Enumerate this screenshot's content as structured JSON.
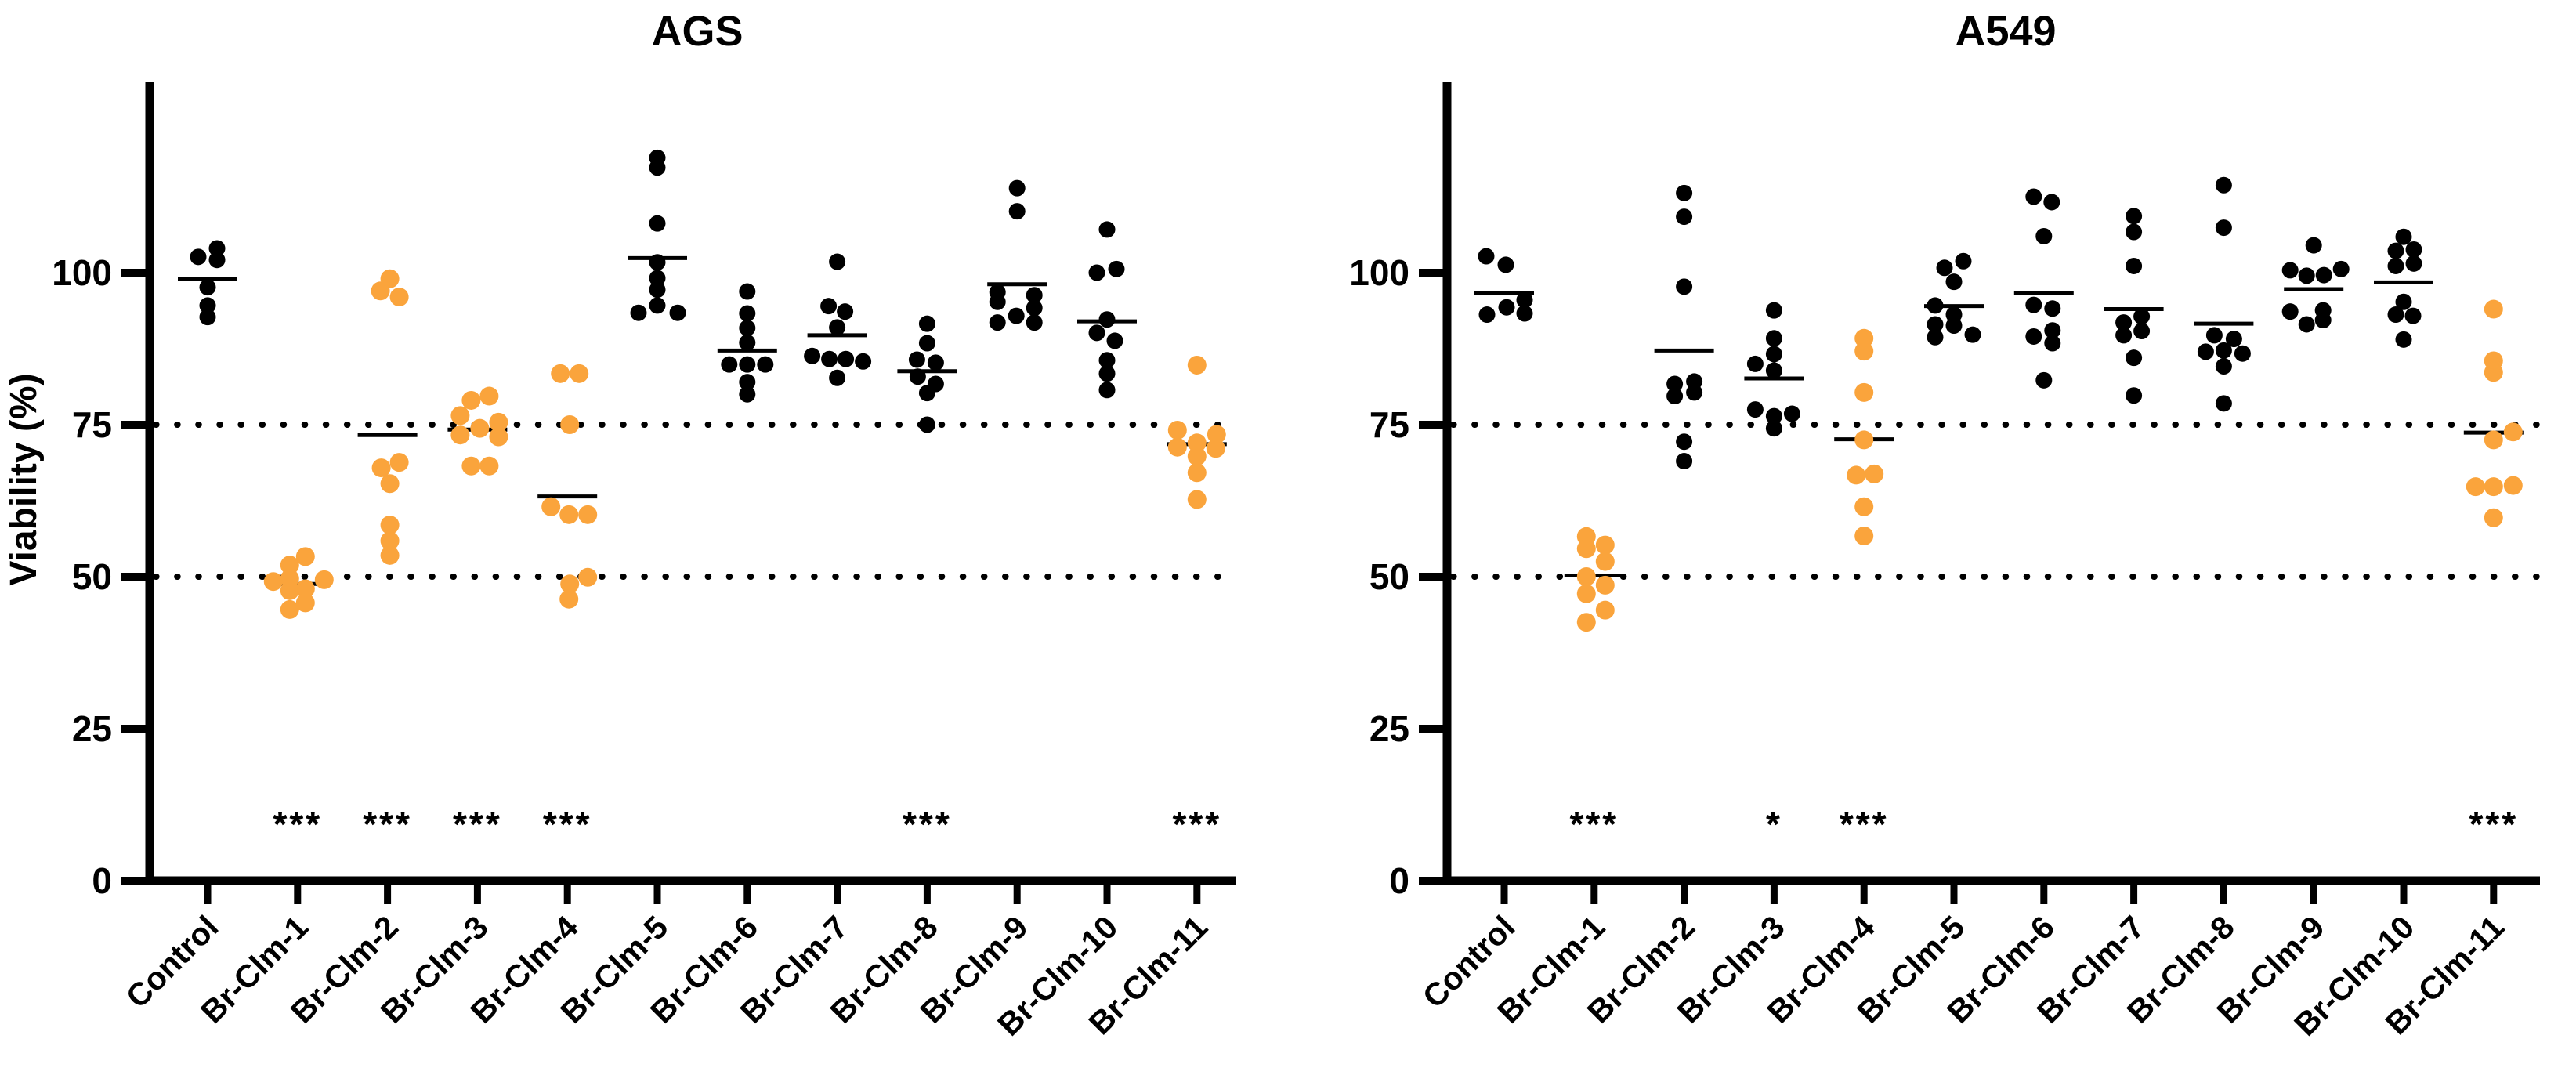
{
  "page": {
    "background": "#FFFFFF"
  },
  "chart_data": [
    {
      "type": "scatter",
      "title": "AGS",
      "ylabel": "Viability (%)",
      "ylim": [
        0,
        122
      ],
      "yticks": [
        {
          "value": 0,
          "label": "0"
        },
        {
          "value": 25,
          "label": "25"
        },
        {
          "value": 50,
          "label": "50"
        },
        {
          "value": 75,
          "label": "75"
        },
        {
          "value": 100,
          "label": "100"
        }
      ],
      "reference_lines": [
        {
          "value": 75,
          "style": "dotted"
        },
        {
          "value": 50,
          "style": "dotted"
        }
      ],
      "colors": {
        "default": "#000000",
        "highlight": "#FAA43C"
      },
      "legend": "none",
      "grid": "off",
      "groups": [
        {
          "label": "Control",
          "color": "default",
          "mean": 98.9,
          "significance": "",
          "points": [
            [
              12,
              104.0
            ],
            [
              -12,
              102.6
            ],
            [
              12,
              102.1
            ],
            [
              0,
              97.6
            ],
            [
              0,
              94.6
            ],
            [
              0,
              92.7
            ]
          ]
        },
        {
          "label": "Br-Clm-1",
          "color": "highlight",
          "mean": 48.8,
          "significance": "***",
          "points": [
            [
              10,
              53.3
            ],
            [
              -10,
              51.9
            ],
            [
              -10,
              49.7
            ],
            [
              34,
              49.5
            ],
            [
              -31,
              49.2
            ],
            [
              10,
              48.0
            ],
            [
              -10,
              47.7
            ],
            [
              10,
              45.7
            ],
            [
              -10,
              44.6
            ]
          ]
        },
        {
          "label": "Br-Clm-2",
          "color": "highlight",
          "mean": 73.3,
          "significance": "***",
          "points": [
            [
              3,
              99.0
            ],
            [
              -9,
              97.0
            ],
            [
              15,
              96.0
            ],
            [
              15,
              68.8
            ],
            [
              -8,
              67.9
            ],
            [
              3,
              65.3
            ],
            [
              3,
              58.5
            ],
            [
              3,
              55.9
            ],
            [
              3,
              53.5
            ]
          ]
        },
        {
          "label": "Br-Clm-3",
          "color": "highlight",
          "mean": 74.2,
          "significance": "***",
          "points": [
            [
              15,
              79.7
            ],
            [
              -8,
              79.0
            ],
            [
              -22,
              76.5
            ],
            [
              27,
              75.4
            ],
            [
              3,
              74.4
            ],
            [
              -22,
              73.3
            ],
            [
              27,
              73.0
            ],
            [
              -8,
              68.2
            ],
            [
              15,
              68.2
            ]
          ]
        },
        {
          "label": "Br-Clm-4",
          "color": "highlight",
          "mean": 63.2,
          "significance": "***",
          "points": [
            [
              -9,
              83.4
            ],
            [
              15,
              83.4
            ],
            [
              3,
              75.0
            ],
            [
              -21,
              61.5
            ],
            [
              2,
              60.2
            ],
            [
              26,
              60.2
            ],
            [
              26,
              49.9
            ],
            [
              3,
              48.8
            ],
            [
              2,
              46.3
            ]
          ]
        },
        {
          "label": "Br-Clm-5",
          "color": "default",
          "mean": 102.4,
          "significance": "",
          "points": [
            [
              0,
              118.9
            ],
            [
              0,
              117.3
            ],
            [
              0,
              108.1
            ],
            [
              0,
              101.7
            ],
            [
              0,
              99.1
            ],
            [
              0,
              97.2
            ],
            [
              0,
              94.6
            ],
            [
              -24,
              93.4
            ],
            [
              26,
              93.4
            ]
          ]
        },
        {
          "label": "Br-Clm-6",
          "color": "default",
          "mean": 87.2,
          "significance": "",
          "points": [
            [
              0,
              96.9
            ],
            [
              0,
              93.3
            ],
            [
              0,
              90.9
            ],
            [
              0,
              88.5
            ],
            [
              -23,
              84.9
            ],
            [
              0,
              84.9
            ],
            [
              23,
              84.9
            ],
            [
              0,
              82.0
            ],
            [
              0,
              80.0
            ]
          ]
        },
        {
          "label": "Br-Clm-7",
          "color": "default",
          "mean": 89.7,
          "significance": "",
          "points": [
            [
              0,
              101.8
            ],
            [
              -11,
              94.5
            ],
            [
              10,
              93.6
            ],
            [
              0,
              91.0
            ],
            [
              -32,
              86.3
            ],
            [
              -10,
              85.8
            ],
            [
              11,
              85.8
            ],
            [
              33,
              85.4
            ],
            [
              0,
              82.7
            ]
          ]
        },
        {
          "label": "Br-Clm-8",
          "color": "default",
          "mean": 83.8,
          "significance": "***",
          "points": [
            [
              0,
              91.6
            ],
            [
              0,
              88.4
            ],
            [
              -13,
              85.7
            ],
            [
              11,
              85.2
            ],
            [
              -12,
              82.9
            ],
            [
              11,
              81.7
            ],
            [
              0,
              80.2
            ],
            [
              0,
              75.0
            ]
          ]
        },
        {
          "label": "Br-Clm-9",
          "color": "default",
          "mean": 98.1,
          "significance": "",
          "points": [
            [
              0,
              113.9
            ],
            [
              0,
              110.1
            ],
            [
              -25,
              96.8
            ],
            [
              22,
              96.3
            ],
            [
              -25,
              95.2
            ],
            [
              22,
              94.2
            ],
            [
              -1,
              92.9
            ],
            [
              -25,
              91.8
            ],
            [
              22,
              91.8
            ]
          ]
        },
        {
          "label": "Br-Clm-10",
          "color": "default",
          "mean": 92.0,
          "significance": "",
          "points": [
            [
              0,
              107.1
            ],
            [
              12,
              100.6
            ],
            [
              -13,
              100.0
            ],
            [
              0,
              92.3
            ],
            [
              -13,
              90.1
            ],
            [
              10,
              88.8
            ],
            [
              0,
              85.6
            ],
            [
              0,
              83.4
            ],
            [
              0,
              80.7
            ]
          ]
        },
        {
          "label": "Br-Clm-11",
          "color": "highlight",
          "mean": 71.8,
          "significance": "***",
          "points": [
            [
              0,
              84.8
            ],
            [
              -25,
              74.1
            ],
            [
              25,
              73.4
            ],
            [
              0,
              72.0
            ],
            [
              -25,
              71.3
            ],
            [
              24,
              71.1
            ],
            [
              0,
              69.8
            ],
            [
              0,
              67.1
            ],
            [
              0,
              62.7
            ]
          ]
        }
      ]
    },
    {
      "type": "scatter",
      "title": "A549",
      "ylabel": "",
      "ylim": [
        0,
        122
      ],
      "yticks": [
        {
          "value": 0,
          "label": "0"
        },
        {
          "value": 25,
          "label": "25"
        },
        {
          "value": 50,
          "label": "50"
        },
        {
          "value": 75,
          "label": "75"
        },
        {
          "value": 100,
          "label": "100"
        }
      ],
      "reference_lines": [
        {
          "value": 75,
          "style": "dotted"
        },
        {
          "value": 50,
          "style": "dotted"
        }
      ],
      "colors": {
        "default": "#000000",
        "highlight": "#FAA43C"
      },
      "legend": "none",
      "grid": "off",
      "groups": [
        {
          "label": "Control",
          "color": "default",
          "mean": 96.7,
          "significance": "",
          "points": [
            [
              -23,
              102.7
            ],
            [
              2,
              101.3
            ],
            [
              26,
              95.5
            ],
            [
              3,
              94.3
            ],
            [
              26,
              93.3
            ],
            [
              -22,
              93.1
            ]
          ]
        },
        {
          "label": "Br-Clm-1",
          "color": "highlight",
          "mean": 50.2,
          "significance": "***",
          "points": [
            [
              -10,
              56.6
            ],
            [
              14,
              55.2
            ],
            [
              -10,
              54.6
            ],
            [
              14,
              52.5
            ],
            [
              -10,
              50.0
            ],
            [
              14,
              48.6
            ],
            [
              -10,
              47.2
            ],
            [
              14,
              44.5
            ],
            [
              -10,
              42.5
            ]
          ]
        },
        {
          "label": "Br-Clm-2",
          "color": "default",
          "mean": 87.2,
          "significance": "",
          "points": [
            [
              0,
              113.1
            ],
            [
              0,
              109.2
            ],
            [
              0,
              97.7
            ],
            [
              13,
              82.1
            ],
            [
              -12,
              81.7
            ],
            [
              13,
              80.3
            ],
            [
              -12,
              79.7
            ],
            [
              0,
              72.2
            ],
            [
              0,
              69.0
            ]
          ]
        },
        {
          "label": "Br-Clm-3",
          "color": "default",
          "mean": 82.6,
          "significance": "*",
          "points": [
            [
              0,
              93.8
            ],
            [
              0,
              89.2
            ],
            [
              0,
              86.6
            ],
            [
              -24,
              85.0
            ],
            [
              0,
              83.9
            ],
            [
              -24,
              77.5
            ],
            [
              23,
              76.8
            ],
            [
              0,
              76.4
            ],
            [
              0,
              74.4
            ]
          ]
        },
        {
          "label": "Br-Clm-4",
          "color": "highlight",
          "mean": 72.6,
          "significance": "***",
          "points": [
            [
              0,
              89.2
            ],
            [
              0,
              87.1
            ],
            [
              0,
              80.3
            ],
            [
              0,
              72.5
            ],
            [
              13,
              66.9
            ],
            [
              -10,
              66.7
            ],
            [
              0,
              61.5
            ],
            [
              0,
              56.7
            ]
          ]
        },
        {
          "label": "Br-Clm-5",
          "color": "default",
          "mean": 94.5,
          "significance": "",
          "points": [
            [
              12,
              101.9
            ],
            [
              -12,
              100.8
            ],
            [
              0,
              98.5
            ],
            [
              -24,
              94.6
            ],
            [
              0,
              93.1
            ],
            [
              -24,
              91.5
            ],
            [
              0,
              91.3
            ],
            [
              24,
              89.8
            ],
            [
              -24,
              89.4
            ]
          ]
        },
        {
          "label": "Br-Clm-6",
          "color": "default",
          "mean": 96.6,
          "significance": "",
          "points": [
            [
              -13,
              112.5
            ],
            [
              10,
              111.6
            ],
            [
              0,
              106.0
            ],
            [
              -13,
              94.7
            ],
            [
              11,
              94.1
            ],
            [
              11,
              90.5
            ],
            [
              -13,
              89.5
            ],
            [
              11,
              88.4
            ],
            [
              0,
              82.3
            ]
          ]
        },
        {
          "label": "Br-Clm-7",
          "color": "default",
          "mean": 94.0,
          "significance": "",
          "points": [
            [
              0,
              109.3
            ],
            [
              0,
              106.7
            ],
            [
              0,
              101.1
            ],
            [
              10,
              92.8
            ],
            [
              -13,
              91.8
            ],
            [
              10,
              90.4
            ],
            [
              -13,
              89.7
            ],
            [
              0,
              86.0
            ],
            [
              0,
              79.8
            ]
          ]
        },
        {
          "label": "Br-Clm-8",
          "color": "default",
          "mean": 91.6,
          "significance": "",
          "points": [
            [
              0,
              114.4
            ],
            [
              0,
              107.4
            ],
            [
              -12,
              89.7
            ],
            [
              13,
              89.1
            ],
            [
              0,
              87.2
            ],
            [
              -23,
              87.0
            ],
            [
              24,
              86.7
            ],
            [
              0,
              84.6
            ],
            [
              0,
              78.5
            ]
          ]
        },
        {
          "label": "Br-Clm-9",
          "color": "default",
          "mean": 97.3,
          "significance": "",
          "points": [
            [
              0,
              104.5
            ],
            [
              35,
              100.6
            ],
            [
              -30,
              100.4
            ],
            [
              13,
              99.6
            ],
            [
              -9,
              99.5
            ],
            [
              12,
              93.8
            ],
            [
              -30,
              93.6
            ],
            [
              12,
              92.2
            ],
            [
              -9,
              91.5
            ]
          ]
        },
        {
          "label": "Br-Clm-10",
          "color": "default",
          "mean": 98.4,
          "significance": "",
          "points": [
            [
              0,
              105.9
            ],
            [
              13,
              103.8
            ],
            [
              -10,
              103.6
            ],
            [
              13,
              101.5
            ],
            [
              -10,
              101.1
            ],
            [
              0,
              95.2
            ],
            [
              -10,
              93.1
            ],
            [
              12,
              92.9
            ],
            [
              0,
              89.0
            ]
          ]
        },
        {
          "label": "Br-Clm-11",
          "color": "highlight",
          "mean": 73.7,
          "significance": "***",
          "points": [
            [
              0,
              94.0
            ],
            [
              0,
              85.5
            ],
            [
              0,
              83.6
            ],
            [
              25,
              73.8
            ],
            [
              0,
              72.5
            ],
            [
              25,
              65.0
            ],
            [
              -23,
              64.8
            ],
            [
              0,
              64.8
            ],
            [
              0,
              59.7
            ]
          ]
        }
      ]
    }
  ]
}
